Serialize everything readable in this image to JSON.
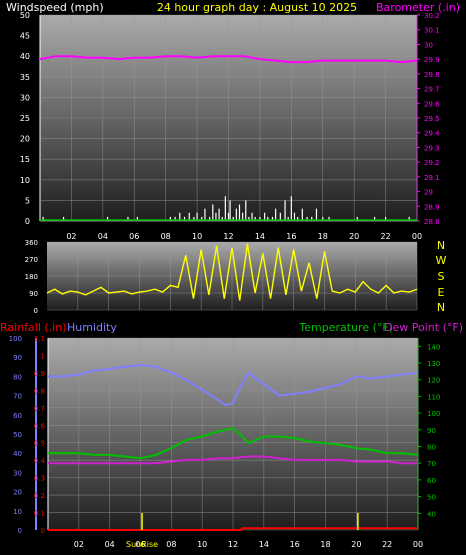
{
  "colors": {
    "background": "#000000",
    "windspeed": "#ffffff",
    "barometer": "#ff00ff",
    "direction": "#ffff00",
    "humidity": "#7f7fff",
    "temperature": "#00c000",
    "dewpoint": "#d020d0",
    "rainfall": "#ff0000",
    "title": "#ffff00",
    "gridline": "#9a9a9a"
  },
  "header": {
    "windspeed_label": "Windspeed (mph)",
    "title": "24 hour graph day : August 10 2025",
    "barometer_label": "Barometer (.in)"
  },
  "lower_header": {
    "rainfall_label": "Rainfall (.in)",
    "humidity_label": "Humidity",
    "temperature_label": "Temperature (°F)",
    "dewpoint_label": "Dew Point (°F)",
    "sunrise_label": "SunRise"
  },
  "compass": [
    "N",
    "W",
    "S",
    "E",
    "N"
  ],
  "x_ticks": [
    "02",
    "04",
    "06",
    "08",
    "10",
    "12",
    "14",
    "16",
    "18",
    "20",
    "22",
    "00"
  ],
  "chart_data": [
    {
      "type": "line",
      "name": "wind-barometer",
      "xlim": [
        0,
        24
      ],
      "y_left": {
        "label": "Windspeed (mph)",
        "lim": [
          0,
          50
        ],
        "ticks": [
          0,
          5,
          10,
          15,
          20,
          25,
          30,
          35,
          40,
          45,
          50
        ]
      },
      "y_right": {
        "label": "Barometer (.in)",
        "lim": [
          28.8,
          30.2
        ],
        "ticks": [
          "28.8",
          "28.9",
          "29",
          "29.1",
          "29.2",
          "29.3",
          "29.4",
          "29.5",
          "29.6",
          "29.7",
          "29.8",
          "29.9",
          "30",
          "30.1",
          "30.2"
        ]
      },
      "series": [
        {
          "name": "Barometer",
          "kind": "line",
          "axis": "right",
          "x": [
            0,
            0.5,
            1,
            2,
            3,
            4,
            5,
            6,
            7,
            8,
            9,
            10,
            11,
            12,
            13,
            14,
            15,
            16,
            17,
            18,
            19,
            20,
            21,
            22,
            23,
            24
          ],
          "y": [
            29.9,
            29.91,
            29.92,
            29.92,
            29.91,
            29.91,
            29.9,
            29.91,
            29.91,
            29.92,
            29.92,
            29.91,
            29.92,
            29.92,
            29.92,
            29.9,
            29.89,
            29.88,
            29.88,
            29.89,
            29.89,
            29.89,
            29.89,
            29.89,
            29.88,
            29.89
          ]
        },
        {
          "name": "Windspeed",
          "kind": "spikes",
          "axis": "left",
          "x": [
            0.2,
            1.5,
            4.3,
            5.6,
            6.2,
            8.3,
            8.6,
            8.9,
            9.2,
            9.5,
            9.8,
            10.0,
            10.3,
            10.5,
            10.8,
            11.0,
            11.2,
            11.4,
            11.6,
            11.8,
            12.0,
            12.1,
            12.3,
            12.5,
            12.7,
            12.9,
            13.1,
            13.3,
            13.5,
            13.7,
            14.0,
            14.3,
            14.5,
            14.8,
            15.0,
            15.3,
            15.6,
            15.8,
            16.0,
            16.2,
            16.4,
            16.7,
            17.0,
            17.3,
            17.6,
            18.0,
            18.4,
            20.2,
            21.3,
            22.0,
            23.5
          ],
          "y": [
            1,
            1,
            1,
            1,
            1,
            1,
            1,
            2,
            1,
            2,
            1,
            2,
            1,
            3,
            1,
            4,
            2,
            3,
            1,
            6,
            2,
            5,
            1,
            3,
            4,
            2,
            5,
            1,
            2,
            1,
            1,
            2,
            1,
            1,
            3,
            2,
            5,
            1,
            6,
            2,
            1,
            3,
            1,
            1,
            3,
            1,
            1,
            1,
            1,
            1,
            1
          ]
        }
      ]
    },
    {
      "type": "line",
      "name": "wind-direction",
      "xlim": [
        0,
        24
      ],
      "y_left": {
        "lim": [
          0,
          360
        ],
        "ticks": [
          0,
          90,
          180,
          270,
          360
        ]
      },
      "series": [
        {
          "name": "Wind Direction",
          "kind": "line",
          "axis": "left",
          "x": [
            0,
            0.5,
            1,
            1.5,
            2,
            2.5,
            3,
            3.5,
            4,
            4.5,
            5,
            5.5,
            6,
            6.5,
            7,
            7.5,
            8,
            8.5,
            9,
            9.5,
            10,
            10.5,
            11,
            11.5,
            12,
            12.5,
            13,
            13.5,
            14,
            14.5,
            15,
            15.5,
            16,
            16.5,
            17,
            17.5,
            18,
            18.5,
            19,
            19.5,
            20,
            20.5,
            21,
            21.5,
            22,
            22.5,
            23,
            23.5,
            24
          ],
          "y": [
            90,
            110,
            85,
            100,
            95,
            80,
            100,
            120,
            90,
            95,
            100,
            85,
            95,
            100,
            110,
            95,
            130,
            120,
            290,
            60,
            320,
            80,
            340,
            60,
            330,
            50,
            350,
            90,
            300,
            60,
            330,
            80,
            320,
            100,
            250,
            60,
            310,
            100,
            90,
            110,
            95,
            150,
            110,
            90,
            130,
            90,
            100,
            95,
            110
          ]
        }
      ]
    },
    {
      "type": "line",
      "name": "temp-humidity-rain",
      "xlim": [
        0,
        24
      ],
      "y_left_outer": {
        "label": "Humidity",
        "lim": [
          0,
          100
        ],
        "ticks": [
          0,
          10,
          20,
          30,
          40,
          50,
          60,
          70,
          80,
          90,
          100
        ]
      },
      "y_left_inner": {
        "label": "Rainfall (.in)",
        "lim": [
          0,
          1.1
        ],
        "ticks": [
          "0",
          "0.1",
          "0.2",
          "0.3",
          "0.4",
          "0.5",
          "0.6",
          "0.7",
          "0.8",
          "0.9",
          "1",
          "1.1"
        ]
      },
      "y_right": {
        "label": "Temperature (°F) / Dew Point (°F)",
        "lim": [
          30,
          145
        ],
        "ticks": [
          40,
          50,
          60,
          70,
          80,
          90,
          100,
          110,
          120,
          130,
          140
        ]
      },
      "annotations": [
        {
          "label": "SunRise",
          "x": 6.1
        },
        {
          "label": "",
          "x": 20.1
        }
      ],
      "series": [
        {
          "name": "Humidity",
          "axis": "left_outer",
          "x": [
            0,
            1,
            2,
            3,
            4,
            5,
            6,
            7,
            8,
            9,
            10,
            11,
            11.5,
            12,
            12.5,
            13,
            14,
            15,
            16,
            17,
            18,
            19,
            20,
            21,
            22,
            23,
            24
          ],
          "y": [
            80,
            80,
            81,
            83,
            84,
            85,
            86,
            85,
            82,
            78,
            73,
            68,
            65,
            66,
            75,
            82,
            76,
            70,
            71,
            72,
            74,
            76,
            80,
            79,
            80,
            81,
            82
          ]
        },
        {
          "name": "Temperature (°F)",
          "axis": "right",
          "x": [
            0,
            1,
            2,
            3,
            4,
            5,
            6,
            7,
            8,
            9,
            10,
            11,
            12,
            12.5,
            13,
            14,
            15,
            16,
            17,
            18,
            19,
            20,
            21,
            22,
            23,
            24
          ],
          "y": [
            76,
            76,
            76,
            75,
            75,
            74,
            73,
            75,
            79,
            84,
            86,
            89,
            91,
            87,
            82,
            86,
            86,
            85,
            83,
            82,
            81,
            79,
            78,
            76,
            76,
            75
          ]
        },
        {
          "name": "Dew Point (°F)",
          "axis": "right",
          "x": [
            0,
            1,
            2,
            3,
            4,
            5,
            6,
            7,
            8,
            9,
            10,
            11,
            12,
            13,
            14,
            15,
            16,
            17,
            18,
            19,
            20,
            21,
            22,
            23,
            24
          ],
          "y": [
            70,
            70,
            70,
            70,
            70,
            70,
            70,
            70,
            71,
            72,
            72,
            73,
            73,
            74,
            74,
            73,
            72,
            72,
            72,
            72,
            71,
            71,
            71,
            70,
            70
          ]
        },
        {
          "name": "Rainfall (.in)",
          "axis": "left_inner",
          "x": [
            0,
            12.5,
            12.6,
            24
          ],
          "y": [
            0,
            0,
            0.01,
            0.01
          ]
        }
      ]
    }
  ]
}
